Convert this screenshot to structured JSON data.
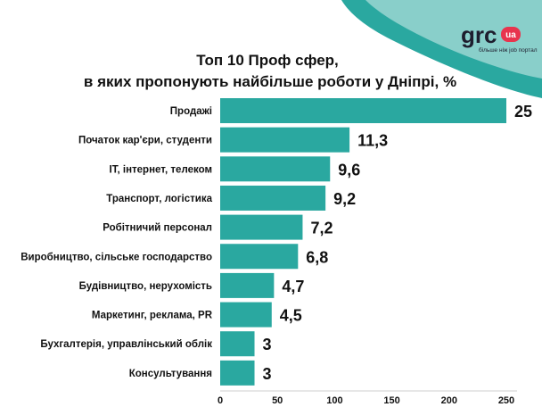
{
  "brand": {
    "logo_text": "grc",
    "logo_badge": "ua",
    "tagline": "більше ніж job портал",
    "accent_color": "#2aa8a0",
    "badge_color": "#e8344e"
  },
  "chart_data": {
    "type": "bar",
    "orientation": "horizontal",
    "title": [
      "Топ 10 Проф сфер,",
      "в яких пропонують найбільше роботи у Дніпрі, %"
    ],
    "categories": [
      "Продажі",
      "Початок кар'єри, студенти",
      "IT, інтернет, телеком",
      "Транспорт, логістика",
      "Робітничий персонал",
      "Виробництво, сільське господарство",
      "Будівництво, нерухомість",
      "Маркетинг, реклама, PR",
      "Бухгалтерія, управлінський облік",
      "Консультування"
    ],
    "values": [
      25,
      11.3,
      9.6,
      9.2,
      7.2,
      6.8,
      4.7,
      4.5,
      3,
      3
    ],
    "value_labels": [
      "25",
      "11,3",
      "9,6",
      "9,2",
      "7,2",
      "6,8",
      "4,7",
      "4,5",
      "3",
      "3"
    ],
    "bar_values_on_axis": [
      250,
      113,
      96,
      92,
      72,
      68,
      47,
      45,
      30,
      30
    ],
    "xticks": [
      0,
      50,
      100,
      150,
      200,
      250
    ],
    "xlim": [
      0,
      250
    ],
    "bar_color": "#2aa8a0",
    "grid": false,
    "legend": "none"
  }
}
